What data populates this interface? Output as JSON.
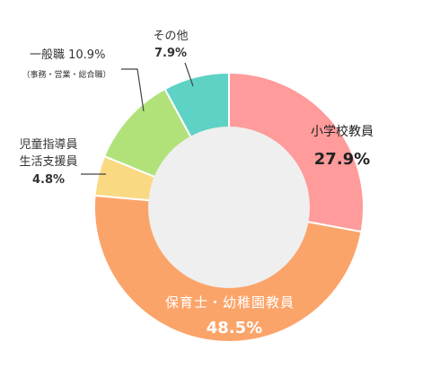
{
  "chart_data": {
    "type": "pie",
    "variant": "donut",
    "slices": [
      {
        "name": "小学校教員",
        "value": 27.9,
        "value_label": "27.9%",
        "color": "#ff9b9b"
      },
      {
        "name": "保育士・幼稚園教員",
        "value": 48.5,
        "value_label": "48.5%",
        "color": "#fba46a"
      },
      {
        "name": "児童指導員生活支援員",
        "name_lines": [
          "児童指導員",
          "生活支援員"
        ],
        "value": 4.8,
        "value_label": "4.8%",
        "color": "#f9d982"
      },
      {
        "name": "一般職",
        "value": 10.9,
        "value_label": "10.9%",
        "sublabel": "（事務・営業・総合職）",
        "color": "#b1e27a"
      },
      {
        "name": "その他",
        "value": 7.9,
        "value_label": "7.9%",
        "color": "#5ed2c4"
      }
    ],
    "hole_color": "#efefef",
    "legend": "none"
  }
}
